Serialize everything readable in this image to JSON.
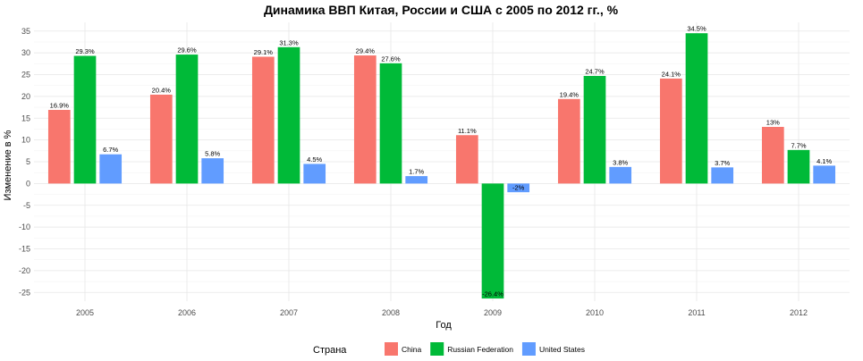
{
  "chart_data": {
    "type": "bar",
    "title": "Динамика ВВП Китая, России и США с 2005 по 2012 гг., %",
    "xlabel": "Год",
    "ylabel": "Изменение в %",
    "categories": [
      "2005",
      "2006",
      "2007",
      "2008",
      "2009",
      "2010",
      "2011",
      "2012"
    ],
    "ylim": [
      -27,
      37
    ],
    "yticks": [
      -25,
      -20,
      -15,
      -10,
      -5,
      0,
      5,
      10,
      15,
      20,
      25,
      30,
      35
    ],
    "grid": true,
    "legend_title": "Страна",
    "legend_position": "bottom",
    "series": [
      {
        "name": "China",
        "color": "#F8766D",
        "values": [
          16.9,
          20.4,
          29.1,
          29.4,
          11.1,
          19.4,
          24.1,
          13
        ],
        "labels": [
          "16.9%",
          "20.4%",
          "29.1%",
          "29.4%",
          "11.1%",
          "19.4%",
          "24.1%",
          "13%"
        ]
      },
      {
        "name": "Russian Federation",
        "color": "#00BA38",
        "values": [
          29.3,
          29.6,
          31.3,
          27.6,
          -26.4,
          24.7,
          34.5,
          7.7
        ],
        "labels": [
          "29.3%",
          "29.6%",
          "31.3%",
          "27.6%",
          "-26.4%",
          "24.7%",
          "34.5%",
          "7.7%"
        ]
      },
      {
        "name": "United States",
        "color": "#619CFF",
        "values": [
          6.7,
          5.8,
          4.5,
          1.7,
          -2,
          3.8,
          3.7,
          4.1
        ],
        "labels": [
          "6.7%",
          "5.8%",
          "4.5%",
          "1.7%",
          "-2%",
          "3.8%",
          "3.7%",
          "4.1%"
        ]
      }
    ]
  }
}
